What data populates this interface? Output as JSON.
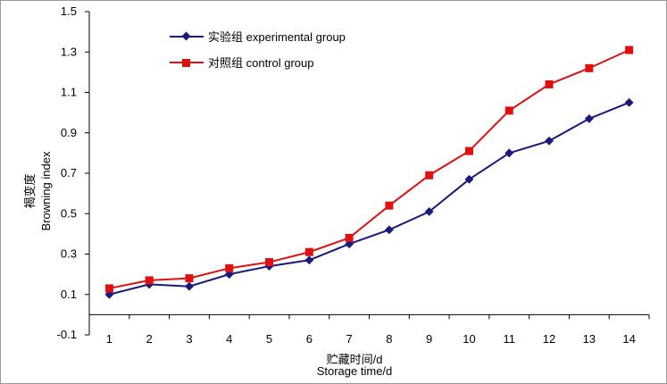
{
  "chart_data": {
    "type": "line",
    "title": "",
    "xlabel_cn": "贮藏时间/d",
    "xlabel_en": "Storage time/d",
    "ylabel_cn": "褐变度",
    "ylabel_en": "Browning index",
    "x": [
      1,
      2,
      3,
      4,
      5,
      6,
      7,
      8,
      9,
      10,
      11,
      12,
      13,
      14
    ],
    "xlim": [
      0.5,
      14.5
    ],
    "ylim": [
      -0.1,
      1.5
    ],
    "yticks": [
      -0.1,
      0.1,
      0.3,
      0.5,
      0.7,
      0.9,
      1.1,
      1.3,
      1.5
    ],
    "ytick_labels": [
      "-0.1",
      "0.1",
      "0.3",
      "0.5",
      "0.7",
      "0.9",
      "1.1",
      "1.3",
      "1.5"
    ],
    "grid": false,
    "legend_position": "top-left",
    "series": [
      {
        "name": "实验组 experimental group",
        "color": "#1a1a7e",
        "marker": "diamond",
        "values": [
          0.1,
          0.15,
          0.14,
          0.2,
          0.24,
          0.27,
          0.35,
          0.42,
          0.51,
          0.67,
          0.8,
          0.86,
          0.97,
          1.05
        ]
      },
      {
        "name": "对照组 control group",
        "color": "#e01010",
        "marker": "square",
        "values": [
          0.13,
          0.17,
          0.18,
          0.23,
          0.26,
          0.31,
          0.38,
          0.54,
          0.69,
          0.81,
          1.01,
          1.14,
          1.22,
          1.31
        ]
      }
    ]
  }
}
